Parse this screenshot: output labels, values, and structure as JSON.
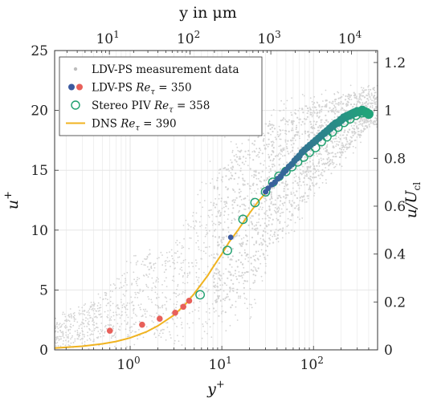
{
  "chart_data": {
    "type": "scatter",
    "x_scale": "log",
    "xlim": [
      0.15,
      500
    ],
    "ylim": [
      0,
      25
    ],
    "grid": true,
    "legend_position": "top-left",
    "xlabel_prefix": "y",
    "xlabel_sup": "+",
    "ylabel_prefix": "u",
    "ylabel_sup": "+",
    "top_axis": {
      "label": "y in μm",
      "ticks": [
        {
          "base": "10",
          "exp": "1",
          "at": 10
        },
        {
          "base": "10",
          "exp": "2",
          "at": 100
        },
        {
          "base": "10",
          "exp": "3",
          "at": 1000
        },
        {
          "base": "10",
          "exp": "4",
          "at": 10000
        }
      ],
      "lim": [
        2.1,
        21000
      ]
    },
    "right_axis": {
      "label_main": "u/U",
      "label_sub": "cl",
      "lim": [
        0,
        1.25
      ],
      "ticks": [
        "0",
        "0.2",
        "0.4",
        "0.6",
        "0.8",
        "1",
        "1.2"
      ],
      "tick_values": [
        0,
        0.2,
        0.4,
        0.6,
        0.8,
        1.0,
        1.2
      ]
    },
    "x_ticks": [
      {
        "base": "10",
        "exp": "0",
        "at": 1
      },
      {
        "base": "10",
        "exp": "1",
        "at": 10
      },
      {
        "base": "10",
        "exp": "2",
        "at": 100
      }
    ],
    "y_ticks": [
      0,
      5,
      10,
      15,
      20,
      25
    ],
    "legend": [
      {
        "text": "LDV-PS measurement data",
        "sym": "Re",
        "sub": "",
        "value": "",
        "marker": "gray-dot"
      },
      {
        "text": "LDV-PS ",
        "sym": "Re",
        "sub": "τ",
        "value": " = 350",
        "marker": "filled-teal-red"
      },
      {
        "text": "Stereo PIV ",
        "sym": "Re",
        "sub": "τ",
        "value": " = 358",
        "marker": "open-green"
      },
      {
        "text": "DNS ",
        "sym": "Re",
        "sub": "τ",
        "value": " = 390",
        "marker": "line-orange"
      }
    ],
    "colors": {
      "measurement": "#d3d3d3",
      "ldv_near_wall": "#e8605a",
      "ldv_outer_start": "#3c5aa0",
      "ldv_outer_end": "#21a47a",
      "piv": "#1e9f6e",
      "dns": "#f0b320",
      "grid": "#e6e6e6"
    },
    "series": [
      {
        "name": "LDV-PS measurement data",
        "kind": "point-cloud",
        "upper_envelope": {
          "x": [
            0.15,
            0.5,
            1,
            3,
            10,
            20,
            40,
            100,
            200,
            400
          ],
          "y": [
            3,
            5,
            8,
            10,
            18,
            20.5,
            21.5,
            22.2,
            22.3,
            22.5
          ]
        },
        "lower_envelope": {
          "x": [
            0.15,
            0.5,
            1,
            3,
            10,
            20,
            40,
            100,
            200,
            400
          ],
          "y": [
            0,
            0,
            0,
            0,
            0.2,
            2,
            7,
            12,
            15,
            18
          ]
        }
      },
      {
        "name": "LDV-PS Re_τ = 350 (near wall)",
        "x": [
          0.6,
          1.35,
          2.1,
          3.1,
          3.8,
          4.4
        ],
        "y": [
          1.6,
          2.1,
          2.6,
          3.1,
          3.6,
          4.1
        ]
      },
      {
        "name": "LDV-PS Re_τ = 350",
        "x": [
          12.5,
          30,
          32,
          35,
          38,
          41,
          44,
          47,
          50,
          54,
          58,
          62,
          66,
          70,
          75,
          80,
          86,
          92,
          99,
          106,
          114,
          122,
          131,
          141,
          151,
          162,
          174,
          187,
          200,
          215,
          230,
          246,
          262,
          280,
          300,
          320,
          340,
          360,
          380,
          400
        ],
        "y": [
          9.4,
          13.2,
          13.5,
          13.8,
          14.0,
          14.3,
          14.5,
          14.8,
          15.0,
          15.3,
          15.5,
          15.8,
          16.0,
          16.2,
          16.5,
          16.7,
          16.9,
          17.1,
          17.3,
          17.5,
          17.7,
          17.9,
          18.1,
          18.3,
          18.5,
          18.7,
          18.9,
          19.0,
          19.2,
          19.4,
          19.5,
          19.6,
          19.7,
          19.8,
          19.9,
          19.9,
          20.0,
          19.9,
          19.8,
          19.7
        ]
      },
      {
        "name": "Stereo PIV Re_τ = 358",
        "x": [
          5.8,
          11.5,
          17,
          23,
          30,
          36,
          42,
          50,
          58,
          67,
          78,
          90,
          105,
          122,
          140,
          160,
          185,
          215,
          250,
          290,
          335,
          380
        ],
        "y": [
          4.6,
          8.3,
          10.9,
          12.3,
          13.2,
          14.0,
          14.5,
          14.9,
          15.3,
          15.7,
          16.1,
          16.5,
          16.9,
          17.4,
          17.8,
          18.2,
          18.6,
          19.0,
          19.3,
          19.6,
          19.8,
          19.8
        ]
      },
      {
        "name": "DNS Re_τ = 390",
        "x": [
          0.15,
          0.3,
          0.5,
          0.7,
          1,
          1.5,
          2,
          3,
          4,
          5,
          6,
          7,
          8,
          10,
          12,
          15,
          20,
          25,
          30,
          40,
          50,
          70,
          100,
          150,
          200,
          250,
          300,
          350,
          390
        ],
        "y": [
          0.15,
          0.3,
          0.5,
          0.7,
          1.0,
          1.5,
          2.0,
          2.9,
          3.8,
          4.7,
          5.5,
          6.2,
          6.9,
          8.0,
          9.0,
          10.0,
          11.4,
          12.4,
          13.1,
          14.2,
          15.0,
          16.2,
          17.3,
          18.6,
          19.3,
          19.7,
          19.9,
          20.0,
          20.1
        ]
      }
    ]
  }
}
